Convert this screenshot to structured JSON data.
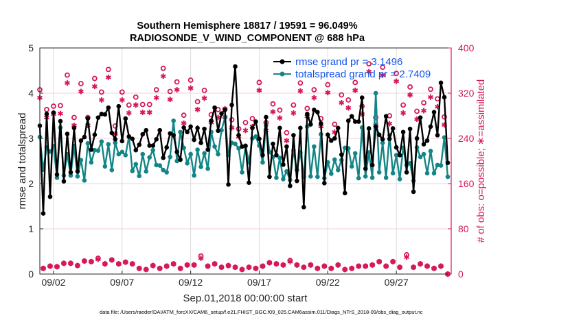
{
  "chart_data": {
    "type": "line",
    "title": "Southern Hemisphere 18817 / 19591 = 96.049%",
    "subtitle": "RADIOSONDE_V_WIND_COMPONENT @ 688 hPa",
    "xlabel": "Sep.01,2018 00:00:00 start",
    "ylabel": "rmse and totalspread",
    "y2label": "# of obs: o=possible; ∗=assimilated",
    "footnote": "data file: /Users/raeder/DAI/ATM_forcXX/CAM6_setup/f.e21.FHIST_BGC.f09_025.CAM6assim.011/Diags_NTrS_2018-09/obs_diag_output.nc",
    "xlim_days": [
      0,
      30
    ],
    "time_step_days": 0.25,
    "ylim": [
      0,
      5
    ],
    "y2lim": [
      0,
      400
    ],
    "xticks": [
      {
        "day": 1,
        "label": "09/02"
      },
      {
        "day": 6,
        "label": "09/07"
      },
      {
        "day": 11,
        "label": "09/12"
      },
      {
        "day": 16,
        "label": "09/17"
      },
      {
        "day": 21,
        "label": "09/22"
      },
      {
        "day": 26,
        "label": "09/27"
      }
    ],
    "yticks": [
      "0",
      "1",
      "2",
      "3",
      "4",
      "5"
    ],
    "y2ticks": [
      "0",
      "80",
      "160",
      "240",
      "320",
      "400"
    ],
    "grid": true,
    "legend_position": "top-right",
    "colors": {
      "rmse": "#000000",
      "spread": "#138586",
      "obs": "#d6185a",
      "legend_text": "#1155ee"
    },
    "series": [
      {
        "name": "rmse",
        "legend": "rmse grand pr = 3.1496",
        "values": [
          3.28,
          1.34,
          3.54,
          1.71,
          3.57,
          2.2,
          3.38,
          2.05,
          3.1,
          2.25,
          3.23,
          2.27,
          2.95,
          3.03,
          3.44,
          2.75,
          3.08,
          3.46,
          3.54,
          3.53,
          3.68,
          3.12,
          2.98,
          3.71,
          2.94,
          3.44,
          3.04,
          2.99,
          2.74,
          2.86,
          3.09,
          3.18,
          2.84,
          2.84,
          2.98,
          3.18,
          2.57,
          2.8,
          3.11,
          3.07,
          2.7,
          2.53,
          3.24,
          3.14,
          3.26,
          2.97,
          3.23,
          2.9,
          3.21,
          2.75,
          3.39,
          3.68,
          3.17,
          3.55,
          3.63,
          1.98,
          3.74,
          4.59,
          3.07,
          2.82,
          2.83,
          2.02,
          3.23,
          3.37,
          2.99,
          2.63,
          3.47,
          2.15,
          2.88,
          2.63,
          3.23,
          2.42,
          2.82,
          1.95,
          3.07,
          2.06,
          3.23,
          1.48,
          3.54,
          3.31,
          3.63,
          3.58,
          3.33,
          2.01,
          3.08,
          2.95,
          3.0,
          3.23,
          2.64,
          1.79,
          3.39,
          3.49,
          3.37,
          3.37,
          3.9,
          2.33,
          3.22,
          2.41,
          3.26,
          3.08,
          2.98,
          3.49,
          2.99,
          3.22,
          2.8,
          2.63,
          3.14,
          2.25,
          3.21,
          1.82,
          3.0,
          3.46,
          2.87,
          2.95,
          3.26,
          3.58,
          3.07,
          4.23,
          3.91,
          2.46
        ]
      },
      {
        "name": "totalspread",
        "legend": "totalspread grand pr = 2.7409",
        "values": [
          3.03,
          2.31,
          2.8,
          2.71,
          2.83,
          2.13,
          3.24,
          2.18,
          2.65,
          2.18,
          2.83,
          2.16,
          2.52,
          2.07,
          2.89,
          2.47,
          2.74,
          2.73,
          2.93,
          2.38,
          2.87,
          2.3,
          2.9,
          2.65,
          2.7,
          2.63,
          3.04,
          2.28,
          2.43,
          2.17,
          2.65,
          2.27,
          2.58,
          2.74,
          2.41,
          2.4,
          2.3,
          2.25,
          2.59,
          3.39,
          2.5,
          3.14,
          2.79,
          2.45,
          2.65,
          2.18,
          2.75,
          2.37,
          2.67,
          2.33,
          3.14,
          2.82,
          2.65,
          3.18,
          3.46,
          2.63,
          2.9,
          2.88,
          2.78,
          2.25,
          2.84,
          2.47,
          3.0,
          3.04,
          2.84,
          2.47,
          3.29,
          2.7,
          2.59,
          2.13,
          2.57,
          2.1,
          2.27,
          2.08,
          2.73,
          2.3,
          2.69,
          2.15,
          3.26,
          2.16,
          2.82,
          2.15,
          3.09,
          2.12,
          2.47,
          2.22,
          2.53,
          2.3,
          2.52,
          2.79,
          2.78,
          2.38,
          2.67,
          2.12,
          3.24,
          2.16,
          2.69,
          2.13,
          4.0,
          2.25,
          2.9,
          2.13,
          3.07,
          2.23,
          2.63,
          2.1,
          2.79,
          2.41,
          2.45,
          2.06,
          2.8,
          2.59,
          2.65,
          2.23,
          2.72,
          2.23,
          2.41,
          2.4,
          3.02,
          2.15
        ]
      }
    ],
    "obs": {
      "possible_00_12Z": [
        326,
        291,
        297,
        298,
        352,
        277,
        337,
        277,
        346,
        322,
        362,
        262,
        322,
        299,
        313,
        300,
        300,
        326,
        364,
        323,
        340,
        281,
        343,
        305,
        325,
        282,
        291,
        292,
        273,
        257,
        268,
        275,
        339,
        268,
        301,
        290,
        250,
        299,
        338,
        293,
        326,
        275,
        335,
        265,
        317,
        308,
        339,
        297,
        372,
        277,
        366,
        280,
        355,
        299,
        331,
        288,
        303,
        327,
        310,
        278
      ],
      "assimilated_00_12Z": [
        312,
        277,
        283,
        284,
        338,
        263,
        323,
        263,
        332,
        308,
        348,
        248,
        308,
        285,
        299,
        286,
        286,
        312,
        350,
        309,
        326,
        267,
        329,
        291,
        311,
        268,
        277,
        278,
        259,
        243,
        254,
        261,
        325,
        254,
        287,
        276,
        236,
        285,
        324,
        279,
        312,
        261,
        321,
        251,
        303,
        294,
        325,
        283,
        358,
        263,
        352,
        266,
        341,
        285,
        317,
        274,
        289,
        313,
        296,
        264
      ],
      "possible_06_18Z": [
        10,
        14,
        13,
        19,
        19,
        15,
        23,
        22,
        28,
        18,
        25,
        18,
        21,
        18,
        10,
        8,
        15,
        10,
        14,
        18,
        10,
        16,
        16,
        32,
        14,
        18,
        12,
        15,
        12,
        8,
        12,
        10,
        14,
        20,
        18,
        16,
        24,
        16,
        12,
        16,
        10,
        14,
        10,
        16,
        8,
        10,
        14,
        14,
        16,
        22,
        14,
        22,
        12,
        34,
        12,
        18,
        14,
        10,
        14,
        0
      ],
      "assimilated_06_18Z": [
        10,
        14,
        13,
        19,
        19,
        15,
        23,
        22,
        26,
        18,
        25,
        18,
        21,
        18,
        10,
        8,
        15,
        10,
        14,
        18,
        10,
        16,
        16,
        28,
        14,
        18,
        12,
        15,
        12,
        8,
        12,
        10,
        14,
        20,
        18,
        16,
        22,
        16,
        12,
        16,
        10,
        14,
        10,
        16,
        8,
        10,
        14,
        14,
        16,
        22,
        14,
        22,
        12,
        30,
        12,
        18,
        14,
        10,
        14,
        0
      ]
    }
  }
}
